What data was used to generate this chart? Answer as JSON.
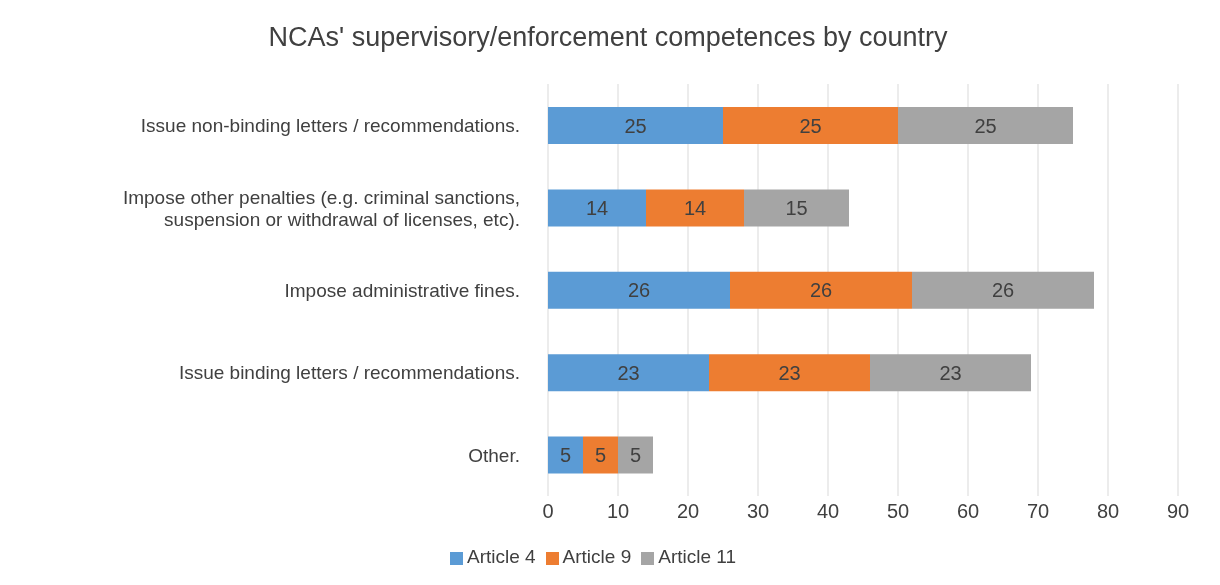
{
  "chart_data": {
    "type": "bar",
    "orientation": "horizontal",
    "stacked": true,
    "title": "NCAs' supervisory/enforcement competences by country",
    "categories": [
      "Issue non-binding letters / recommendations.",
      "Impose other penalties (e.g. criminal sanctions, suspension or withdrawal of licenses, etc).",
      "Impose administrative fines.",
      "Issue binding letters / recommendations.",
      "Other."
    ],
    "series": [
      {
        "name": "Article 4",
        "color": "#5b9bd5",
        "values": [
          25,
          14,
          26,
          23,
          5
        ]
      },
      {
        "name": "Article 9",
        "color": "#ed7d31",
        "values": [
          25,
          14,
          26,
          23,
          5
        ]
      },
      {
        "name": "Article 11",
        "color": "#a5a5a5",
        "values": [
          25,
          15,
          26,
          23,
          5
        ]
      }
    ],
    "xlim": [
      0,
      90
    ],
    "xticks": [
      0,
      10,
      20,
      30,
      40,
      50,
      60,
      70,
      80,
      90
    ],
    "grid": "x",
    "legend": "bottom",
    "data_labels": true
  }
}
